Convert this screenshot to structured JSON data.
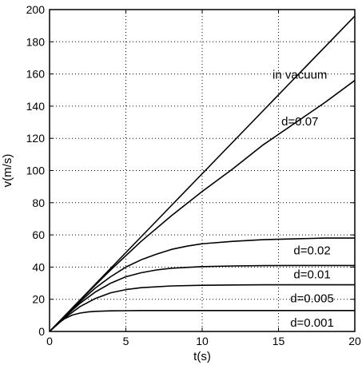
{
  "chart_data": {
    "type": "line",
    "xlabel": "t(s)",
    "ylabel": "v(m/s)",
    "xlim": [
      0,
      20
    ],
    "ylim": [
      0,
      200
    ],
    "xticks": [
      0,
      5,
      10,
      15,
      20
    ],
    "yticks": [
      0,
      20,
      40,
      60,
      80,
      100,
      120,
      140,
      160,
      180,
      200
    ],
    "grid": true,
    "grid_style": "dotted",
    "series": [
      {
        "label": "in vacuum",
        "x": [
          0,
          2,
          4,
          6,
          8,
          10,
          12,
          14,
          16,
          18,
          20
        ],
        "y": [
          0,
          19.6,
          39.2,
          58.8,
          78.4,
          98,
          117.6,
          137.2,
          156.8,
          176.4,
          196
        ]
      },
      {
        "label": "d=0.07",
        "x": [
          0,
          2,
          4,
          6,
          8,
          10,
          12,
          14,
          16,
          18,
          20
        ],
        "y": [
          0,
          19.4,
          38.2,
          56,
          72,
          87,
          101,
          116,
          129,
          142,
          156
        ]
      },
      {
        "label": "d=0.02",
        "x": [
          0,
          1,
          2,
          3,
          4,
          5,
          6,
          7,
          8,
          9,
          10,
          12,
          14,
          16,
          18,
          20
        ],
        "y": [
          0,
          9.5,
          18.5,
          27,
          34,
          40,
          44.5,
          48,
          51,
          53,
          54.5,
          56,
          57,
          57.5,
          58,
          58
        ]
      },
      {
        "label": "d=0.01",
        "x": [
          0,
          1,
          2,
          3,
          4,
          5,
          6,
          7,
          8,
          10,
          12,
          14,
          16,
          18,
          20
        ],
        "y": [
          0,
          9.2,
          17.5,
          24.5,
          30,
          34,
          36.5,
          38.2,
          39.3,
          40.3,
          40.7,
          40.9,
          41,
          41,
          41
        ]
      },
      {
        "label": "d=0.005",
        "x": [
          0,
          1,
          2,
          3,
          4,
          5,
          6,
          8,
          10,
          12,
          14,
          16,
          18,
          20
        ],
        "y": [
          0,
          8.5,
          15.5,
          20.5,
          24,
          26,
          27.2,
          28.3,
          28.7,
          28.9,
          29,
          29,
          29,
          29
        ]
      },
      {
        "label": "d=0.001",
        "x": [
          0,
          0.5,
          1,
          1.5,
          2,
          2.5,
          3,
          4,
          5,
          6,
          8,
          10,
          15,
          20
        ],
        "y": [
          0,
          4.5,
          8,
          10.2,
          11.4,
          12.1,
          12.5,
          12.8,
          12.9,
          13,
          13,
          13,
          13,
          13
        ]
      }
    ]
  }
}
